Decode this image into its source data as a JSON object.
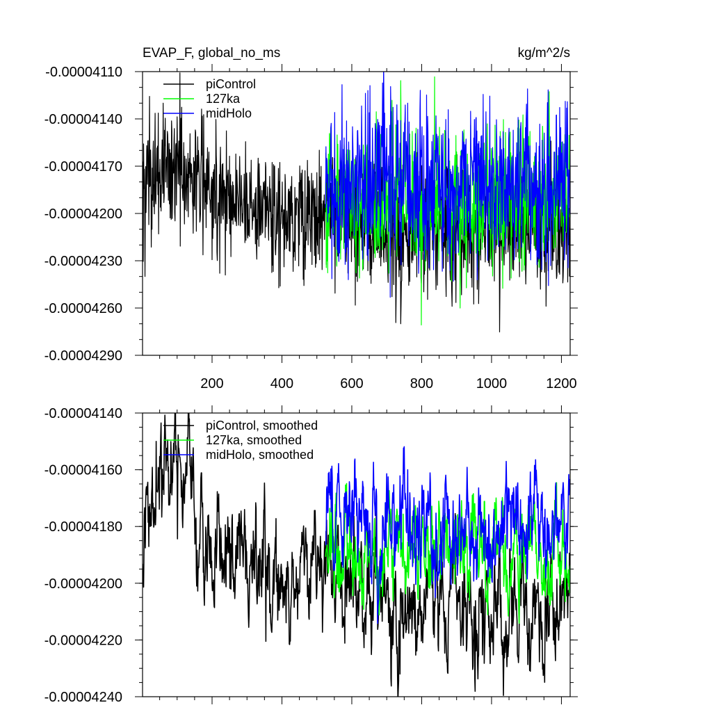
{
  "chart_data": [
    {
      "type": "line",
      "title": "EVAP_F, global_no_ms",
      "units": "kg/m^2/s",
      "xlabel": "",
      "ylabel": "",
      "xlim": [
        1,
        1225
      ],
      "ylim": [
        -4.29e-05,
        -4.11e-05
      ],
      "yticks": [
        {
          "value": -4.11e-05,
          "label": "-0.00004110"
        },
        {
          "value": -4.14e-05,
          "label": "-0.00004140"
        },
        {
          "value": -4.17e-05,
          "label": "-0.00004170"
        },
        {
          "value": -4.2e-05,
          "label": "-0.00004200"
        },
        {
          "value": -4.23e-05,
          "label": "-0.00004230"
        },
        {
          "value": -4.26e-05,
          "label": "-0.00004260"
        },
        {
          "value": -4.29e-05,
          "label": "-0.00004290"
        }
      ],
      "xticks": [
        {
          "value": 200,
          "label": "200"
        },
        {
          "value": 400,
          "label": "400"
        },
        {
          "value": 600,
          "label": "600"
        },
        {
          "value": 800,
          "label": "800"
        },
        {
          "value": 1000,
          "label": "1000"
        },
        {
          "value": 1200,
          "label": "1200"
        }
      ],
      "legend": {
        "placement": "top-left",
        "entries": [
          "piControl",
          "127ka",
          "midHolo"
        ]
      },
      "series": [
        {
          "name": "piControl",
          "color": "#000000",
          "x_start": 1,
          "x_end": 1225,
          "mean_by_segment": [
            {
              "x": 1,
              "mean": -4.18e-05
            },
            {
              "x": 100,
              "mean": -4.17e-05
            },
            {
              "x": 250,
              "mean": -4.19e-05
            },
            {
              "x": 400,
              "mean": -4.2e-05
            },
            {
              "x": 520,
              "mean": -4.2e-05
            },
            {
              "x": 700,
              "mean": -4.21e-05
            },
            {
              "x": 1225,
              "mean": -4.21e-05
            }
          ],
          "spread": 2e-07,
          "extremes": [
            {
              "x": 8,
              "value": -4.24e-05
            },
            {
              "x": 60,
              "value": -4.13e-05
            },
            {
              "x": 740,
              "value": -4.27e-05
            }
          ]
        },
        {
          "name": "127ka",
          "color": "#00ff00",
          "x_start": 525,
          "x_end": 1225,
          "mean_by_segment": [
            {
              "x": 525,
              "mean": -4.19e-05
            },
            {
              "x": 1225,
              "mean": -4.19e-05
            }
          ],
          "spread": 2.2e-07,
          "extremes": [
            {
              "x": 910,
              "value": -4.26e-05
            }
          ]
        },
        {
          "name": "midHolo",
          "color": "#0000ff",
          "x_start": 525,
          "x_end": 1225,
          "mean_by_segment": [
            {
              "x": 525,
              "mean": -4.18e-05
            },
            {
              "x": 1225,
              "mean": -4.18e-05
            }
          ],
          "spread": 2.5e-07,
          "extremes": [
            {
              "x": 760,
              "value": -4.13e-05
            }
          ]
        }
      ]
    },
    {
      "type": "line",
      "title": "",
      "units": "",
      "xlabel": "",
      "ylabel": "",
      "xlim": [
        1,
        1225
      ],
      "ylim": [
        -4.24e-05,
        -4.14e-05
      ],
      "yticks": [
        {
          "value": -4.14e-05,
          "label": "-0.00004140"
        },
        {
          "value": -4.16e-05,
          "label": "-0.00004160"
        },
        {
          "value": -4.18e-05,
          "label": "-0.00004180"
        },
        {
          "value": -4.2e-05,
          "label": "-0.00004200"
        },
        {
          "value": -4.22e-05,
          "label": "-0.00004220"
        },
        {
          "value": -4.24e-05,
          "label": "-0.00004240"
        }
      ],
      "xticks": [
        {
          "value": 200,
          "label": ""
        },
        {
          "value": 400,
          "label": ""
        },
        {
          "value": 600,
          "label": ""
        },
        {
          "value": 800,
          "label": ""
        },
        {
          "value": 1000,
          "label": ""
        },
        {
          "value": 1200,
          "label": ""
        }
      ],
      "legend": {
        "placement": "top-left",
        "entries": [
          "piControl, smoothed",
          "127ka, smoothed",
          "midHolo, smoothed"
        ]
      },
      "series": [
        {
          "name": "piControl, smoothed",
          "color": "#000000",
          "x_start": 1,
          "x_end": 1225,
          "mean_by_segment": [
            {
              "x": 1,
              "mean": -4.19e-05
            },
            {
              "x": 70,
              "mean": -4.16e-05
            },
            {
              "x": 150,
              "mean": -4.18e-05
            },
            {
              "x": 250,
              "mean": -4.19e-05
            },
            {
              "x": 300,
              "mean": -4.2e-05
            },
            {
              "x": 520,
              "mean": -4.19e-05
            },
            {
              "x": 700,
              "mean": -4.21e-05
            },
            {
              "x": 1225,
              "mean": -4.21e-05
            }
          ],
          "spread": 1.2e-07,
          "extremes": [
            {
              "x": 40,
              "value": -4.15e-05
            },
            {
              "x": 1150,
              "value": -4.23e-05
            }
          ]
        },
        {
          "name": "127ka, smoothed",
          "color": "#00ff00",
          "x_start": 525,
          "x_end": 1225,
          "mean_by_segment": [
            {
              "x": 525,
              "mean": -4.19e-05
            },
            {
              "x": 1225,
              "mean": -4.19e-05
            }
          ],
          "spread": 1e-07,
          "extremes": []
        },
        {
          "name": "midHolo, smoothed",
          "color": "#0000ff",
          "x_start": 525,
          "x_end": 1225,
          "mean_by_segment": [
            {
              "x": 525,
              "mean": -4.18e-05
            },
            {
              "x": 1225,
              "mean": -4.18e-05
            }
          ],
          "spread": 1.1e-07,
          "extremes": [
            {
              "x": 760,
              "value": -4.16e-05
            }
          ]
        }
      ]
    }
  ]
}
